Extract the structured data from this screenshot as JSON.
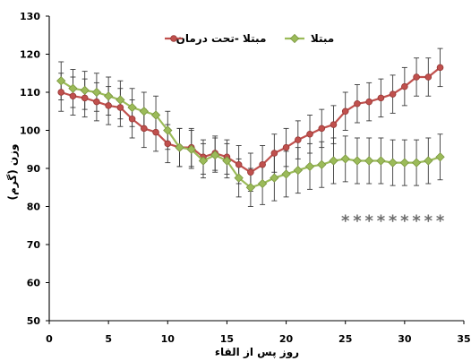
{
  "chart_data": {
    "type": "line",
    "x": [
      1,
      2,
      3,
      4,
      5,
      6,
      7,
      8,
      9,
      10,
      11,
      12,
      13,
      14,
      15,
      16,
      17,
      18,
      19,
      20,
      21,
      22,
      23,
      24,
      25,
      26,
      27,
      28,
      29,
      30,
      31,
      32,
      33
    ],
    "series": [
      {
        "name": "مبتلا -تحت درمان",
        "color": "#c0504d",
        "edge_color": "#943634",
        "marker": "circle",
        "values": [
          110,
          109,
          108.5,
          107.5,
          106.5,
          106,
          103,
          100.5,
          99.5,
          96.5,
          95.5,
          95.5,
          93,
          94,
          93,
          91,
          89,
          91,
          94,
          95.5,
          97.5,
          99,
          100.5,
          101.5,
          105,
          107,
          107.5,
          108.5,
          109.5,
          111.5,
          114,
          114,
          116.5
        ],
        "error": [
          5,
          5,
          5,
          5,
          5,
          5,
          5,
          5,
          5,
          5,
          5,
          5,
          4.5,
          4.5,
          4.5,
          5,
          5,
          5,
          5,
          5,
          5,
          5,
          5,
          5,
          5,
          5,
          5,
          5,
          5,
          5,
          5,
          5,
          5
        ]
      },
      {
        "name": "مبتلا",
        "color": "#9bbb59",
        "edge_color": "#77933c",
        "marker": "diamond",
        "values": [
          113,
          111,
          110.5,
          110,
          109,
          108,
          106,
          105,
          104,
          100,
          95.5,
          95,
          92,
          93.5,
          92,
          87.5,
          85,
          86,
          87.5,
          88.5,
          89.5,
          90.5,
          91,
          92,
          92.5,
          92,
          92,
          92,
          91.5,
          91.5,
          91.5,
          92,
          93
        ],
        "error": [
          5,
          5,
          5,
          5,
          5,
          5,
          5,
          5,
          5,
          5,
          5,
          5,
          4.5,
          4.5,
          4.5,
          5,
          5,
          5.5,
          6,
          6,
          6,
          6,
          6,
          6,
          6,
          6,
          6,
          6,
          6,
          6,
          6,
          6,
          6
        ]
      }
    ],
    "xlabel": "روز پس از القاء",
    "ylabel": "وزن (گرم)",
    "xlim": [
      0,
      35
    ],
    "ylim": [
      50,
      130
    ],
    "xticks": [
      0,
      5,
      10,
      15,
      20,
      25,
      30,
      35
    ],
    "yticks": [
      50,
      60,
      70,
      80,
      90,
      100,
      110,
      120,
      130
    ],
    "grid": false,
    "legend": "top-center",
    "error_bars": true,
    "error_bar_color": "#3a3a3a",
    "significance": {
      "marker": "*",
      "x": [
        25,
        26,
        27,
        28,
        29,
        30,
        31,
        32,
        33
      ],
      "y": 77,
      "color": "#6e6e6e"
    }
  }
}
